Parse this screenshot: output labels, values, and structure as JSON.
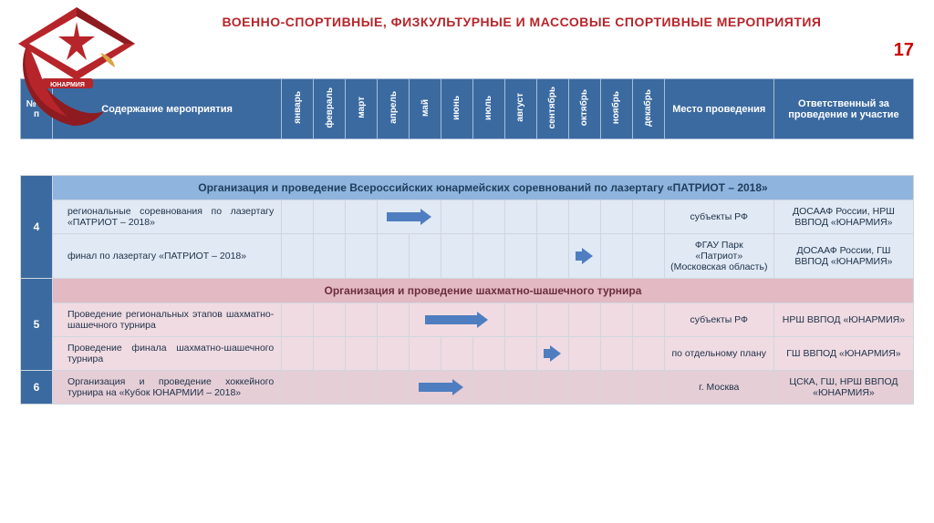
{
  "title": "ВОЕННО-СПОРТИВНЫЕ, ФИЗКУЛЬТУРНЫЕ И МАССОВЫЕ СПОРТИВНЫЕ МЕРОПРИЯТИЯ",
  "page_number": "17",
  "logo_text": "ЮНАРМИЯ",
  "columns": {
    "num": "№ п/п",
    "content": "Содержание мероприятия",
    "months": [
      "январь",
      "февраль",
      "март",
      "апрель",
      "май",
      "июнь",
      "июль",
      "август",
      "сентябрь",
      "октябрь",
      "ноябрь",
      "декабрь"
    ],
    "place": "Место проведения",
    "resp": "Ответственный за проведение и участие"
  },
  "groups": [
    {
      "num": "4",
      "heading": "Организация и проведение Всероссийских юнармейских соревнований по лазертагу «ПАТРИОТ – 2018»",
      "tone": "blue",
      "rows": [
        {
          "content": "региональные соревнования по лазертагу «ПАТРИОТ – 2018»",
          "place": "субъекты РФ",
          "resp": "ДОСААФ России, НРШ ВВПОД «ЮНАРМИЯ»",
          "arrow": {
            "start": 3,
            "span": 2,
            "len": "mid"
          }
        },
        {
          "content": "финал по лазертагу «ПАТРИОТ – 2018»",
          "place": "ФГАУ Парк «Патриот» (Московская область)",
          "resp": "ДОСААФ России, ГШ ВВПОД «ЮНАРМИЯ»",
          "arrow": {
            "start": 9,
            "span": 1,
            "len": "short"
          }
        }
      ]
    },
    {
      "num": "5",
      "heading": "Организация и проведение шахматно-шашечного турнира",
      "tone": "pink",
      "rows": [
        {
          "content": "Проведение региональных этапов шахматно-шашечного турнира",
          "place": "субъекты РФ",
          "resp": "НРШ ВВПОД «ЮНАРМИЯ»",
          "arrow": {
            "start": 4,
            "span": 3,
            "len": "long"
          }
        },
        {
          "content": "Проведение финала шахматно-шашечного турнира",
          "place": "по отдельному плану",
          "resp": "ГШ ВВПОД «ЮНАРМИЯ»",
          "arrow": {
            "start": 8,
            "span": 1,
            "len": "short"
          }
        }
      ]
    },
    {
      "num": "6",
      "heading": null,
      "tone": "pink2",
      "rows": [
        {
          "content": "Организация и проведение хоккейного турнира на «Кубок ЮНАРМИИ – 2018»",
          "place": "г. Москва",
          "resp": "ЦСКА, ГШ, НРШ ВВПОД «ЮНАРМИЯ»",
          "arrow": {
            "start": 4,
            "span": 2,
            "len": "mid"
          }
        }
      ]
    }
  ],
  "colors": {
    "header_bg": "#3b6aa0",
    "title_color": "#b6252a",
    "group_blue": "#8fb5de",
    "group_pink": "#e3b9c3",
    "row_blue": "#e0e9f4",
    "row_pink": "#f0dbe2",
    "row_pink2": "#e6ced6",
    "arrow_color": "#4f7ec0",
    "pagenum_color": "#c00"
  }
}
